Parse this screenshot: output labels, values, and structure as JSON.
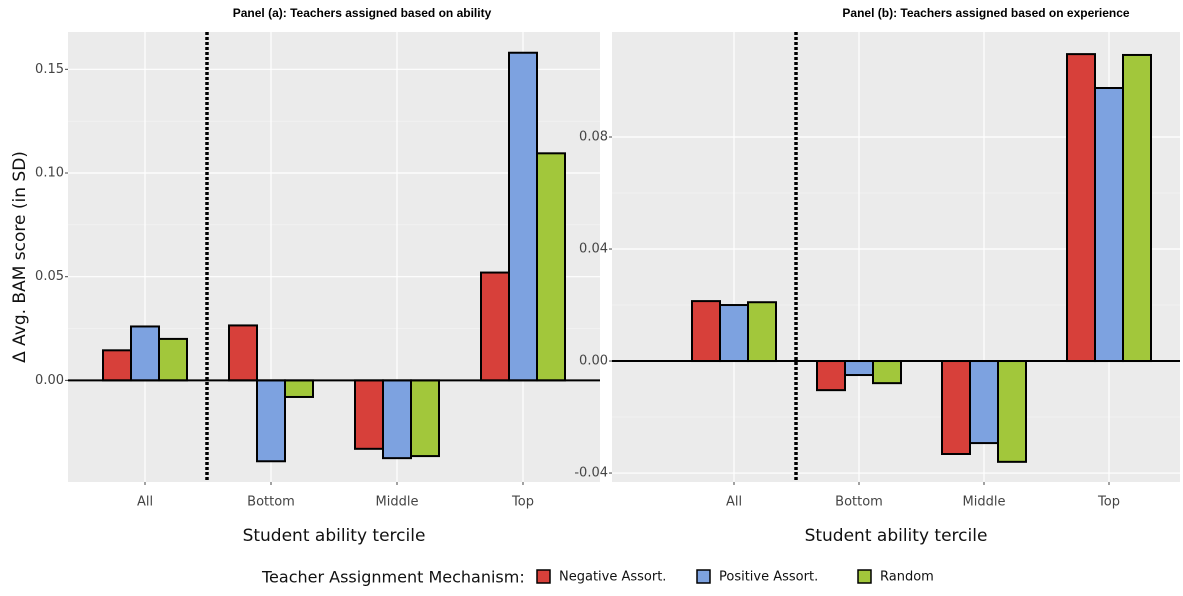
{
  "chart_data": [
    {
      "type": "bar",
      "title": "Panel (a): Teachers assigned based on ability",
      "y_label": "Δ Avg. BAM score (in SD)",
      "x_label": "Student ability tercile",
      "categories": [
        "All",
        "Bottom",
        "Middle",
        "Top"
      ],
      "series": [
        {
          "name": "Negative Assort.",
          "color": "#d7403a",
          "values": [
            0.0145,
            0.0265,
            -0.033,
            0.052
          ]
        },
        {
          "name": "Positive Assort.",
          "color": "#7da2e0",
          "values": [
            0.026,
            -0.039,
            -0.0375,
            0.158
          ]
        },
        {
          "name": "Random",
          "color": "#a2c73b",
          "values": [
            0.02,
            -0.008,
            -0.0365,
            0.1095
          ]
        }
      ],
      "ylim": [
        -0.049,
        0.168
      ],
      "yticks": [
        {
          "value": 0,
          "label": "0.00"
        },
        0.05,
        {
          "value": 0.1,
          "label": "0.10"
        },
        0.15
      ],
      "grid": true
    },
    {
      "type": "bar",
      "title": "Panel (b): Teachers assigned based on experience",
      "x_label": "Student ability tercile",
      "categories": [
        "All",
        "Bottom",
        "Middle",
        "Top"
      ],
      "series": [
        {
          "name": "Negative Assort.",
          "color": "#d7403a",
          "values": [
            0.0214,
            -0.0104,
            -0.0332,
            0.1096
          ]
        },
        {
          "name": "Positive Assort.",
          "color": "#7da2e0",
          "values": [
            0.02,
            -0.005,
            -0.0293,
            0.0975
          ]
        },
        {
          "name": "Random",
          "color": "#a2c73b",
          "values": [
            0.021,
            -0.0079,
            -0.036,
            0.1093
          ]
        }
      ],
      "ylim": [
        -0.0432,
        0.1175
      ],
      "yticks": [
        -0.04,
        {
          "value": 0,
          "label": "0.00"
        },
        0.04,
        0.08
      ],
      "grid": true
    }
  ],
  "legend_title": "Teacher Assignment Mechanism:"
}
